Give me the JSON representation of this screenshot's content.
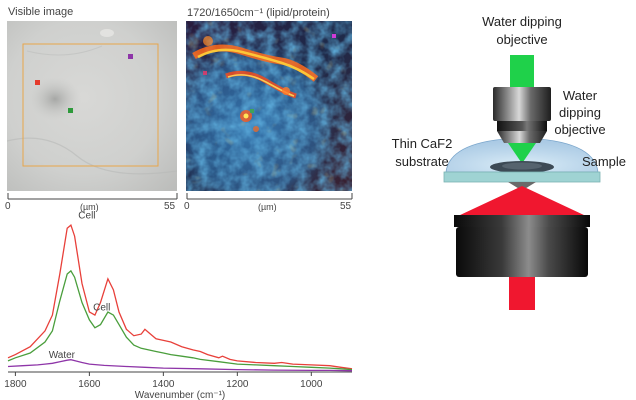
{
  "visible_panel": {
    "title": "Visible image",
    "x_min": "0",
    "x_unit": "(µm)",
    "x_max": "55",
    "marker_colors": [
      "#e53b2c",
      "#2e9a3b",
      "#8e35a8"
    ]
  },
  "ratio_panel": {
    "title": "1720/1650cm⁻¹ (lipid/protein)",
    "x_min": "0",
    "x_unit": "(µm)",
    "x_max": "55",
    "marker_color": "#d23ad8"
  },
  "diagram": {
    "top_objective_label_line1": "Water dipping",
    "top_objective_label_line2": "objective",
    "side_objective_label_line1": "Water",
    "side_objective_label_line2": "dipping",
    "side_objective_label_line3": "objective",
    "substrate_label_line1": "Thin CaF2",
    "substrate_label_line2": "substrate",
    "sample_label": "Sample",
    "green_beam_color": "#1fd14a",
    "red_beam_color": "#f0172f",
    "substrate_color": "#9fd3d3"
  },
  "chart_data": {
    "type": "line",
    "xlabel": "Wavenumber (cm⁻¹)",
    "xlim": [
      1820,
      890
    ],
    "ylim": [
      0,
      1.0
    ],
    "x_reversed": true,
    "xticks": [
      1800,
      1600,
      1400,
      1200,
      1000
    ],
    "series": [
      {
        "name": "Cell",
        "color": "#e8403a",
        "points": [
          [
            1820,
            0.09
          ],
          [
            1800,
            0.11
          ],
          [
            1760,
            0.16
          ],
          [
            1720,
            0.26
          ],
          [
            1700,
            0.36
          ],
          [
            1680,
            0.62
          ],
          [
            1660,
            0.91
          ],
          [
            1650,
            0.93
          ],
          [
            1640,
            0.86
          ],
          [
            1620,
            0.56
          ],
          [
            1600,
            0.38
          ],
          [
            1585,
            0.36
          ],
          [
            1570,
            0.44
          ],
          [
            1550,
            0.59
          ],
          [
            1535,
            0.52
          ],
          [
            1520,
            0.38
          ],
          [
            1500,
            0.27
          ],
          [
            1480,
            0.23
          ],
          [
            1460,
            0.24
          ],
          [
            1450,
            0.27
          ],
          [
            1440,
            0.25
          ],
          [
            1420,
            0.21
          ],
          [
            1400,
            0.2
          ],
          [
            1380,
            0.19
          ],
          [
            1350,
            0.16
          ],
          [
            1320,
            0.14
          ],
          [
            1300,
            0.13
          ],
          [
            1280,
            0.11
          ],
          [
            1250,
            0.09
          ],
          [
            1240,
            0.1
          ],
          [
            1220,
            0.08
          ],
          [
            1200,
            0.07
          ],
          [
            1150,
            0.06
          ],
          [
            1100,
            0.055
          ],
          [
            1080,
            0.06
          ],
          [
            1050,
            0.05
          ],
          [
            1000,
            0.045
          ],
          [
            950,
            0.04
          ],
          [
            920,
            0.03
          ],
          [
            890,
            0.02
          ]
        ]
      },
      {
        "name": "Cell",
        "color": "#4a9e3c",
        "points": [
          [
            1820,
            0.07
          ],
          [
            1800,
            0.09
          ],
          [
            1760,
            0.12
          ],
          [
            1720,
            0.19
          ],
          [
            1700,
            0.26
          ],
          [
            1680,
            0.45
          ],
          [
            1660,
            0.62
          ],
          [
            1650,
            0.64
          ],
          [
            1640,
            0.6
          ],
          [
            1620,
            0.44
          ],
          [
            1600,
            0.33
          ],
          [
            1585,
            0.28
          ],
          [
            1570,
            0.3
          ],
          [
            1550,
            0.38
          ],
          [
            1535,
            0.36
          ],
          [
            1520,
            0.3
          ],
          [
            1500,
            0.22
          ],
          [
            1480,
            0.17
          ],
          [
            1460,
            0.15
          ],
          [
            1440,
            0.14
          ],
          [
            1420,
            0.13
          ],
          [
            1400,
            0.12
          ],
          [
            1380,
            0.11
          ],
          [
            1350,
            0.1
          ],
          [
            1320,
            0.09
          ],
          [
            1300,
            0.08
          ],
          [
            1250,
            0.065
          ],
          [
            1200,
            0.05
          ],
          [
            1150,
            0.045
          ],
          [
            1100,
            0.04
          ],
          [
            1050,
            0.035
          ],
          [
            1000,
            0.03
          ],
          [
            950,
            0.025
          ],
          [
            920,
            0.02
          ],
          [
            890,
            0.015
          ]
        ]
      },
      {
        "name": "Water",
        "color": "#8e35a8",
        "points": [
          [
            1820,
            0.035
          ],
          [
            1780,
            0.04
          ],
          [
            1740,
            0.045
          ],
          [
            1720,
            0.05
          ],
          [
            1700,
            0.055
          ],
          [
            1680,
            0.065
          ],
          [
            1660,
            0.075
          ],
          [
            1650,
            0.078
          ],
          [
            1640,
            0.072
          ],
          [
            1620,
            0.06
          ],
          [
            1600,
            0.05
          ],
          [
            1560,
            0.042
          ],
          [
            1500,
            0.035
          ],
          [
            1450,
            0.03
          ],
          [
            1400,
            0.025
          ],
          [
            1300,
            0.02
          ],
          [
            1200,
            0.015
          ],
          [
            1100,
            0.012
          ],
          [
            1000,
            0.01
          ],
          [
            950,
            0.01
          ],
          [
            900,
            0.008
          ],
          [
            890,
            0.008
          ]
        ]
      }
    ],
    "annotations": [
      {
        "text": "Cell",
        "x": 1630,
        "y": 0.97
      },
      {
        "text": "Cell",
        "x": 1590,
        "y": 0.39
      },
      {
        "text": "Water",
        "x": 1710,
        "y": 0.09
      }
    ]
  }
}
